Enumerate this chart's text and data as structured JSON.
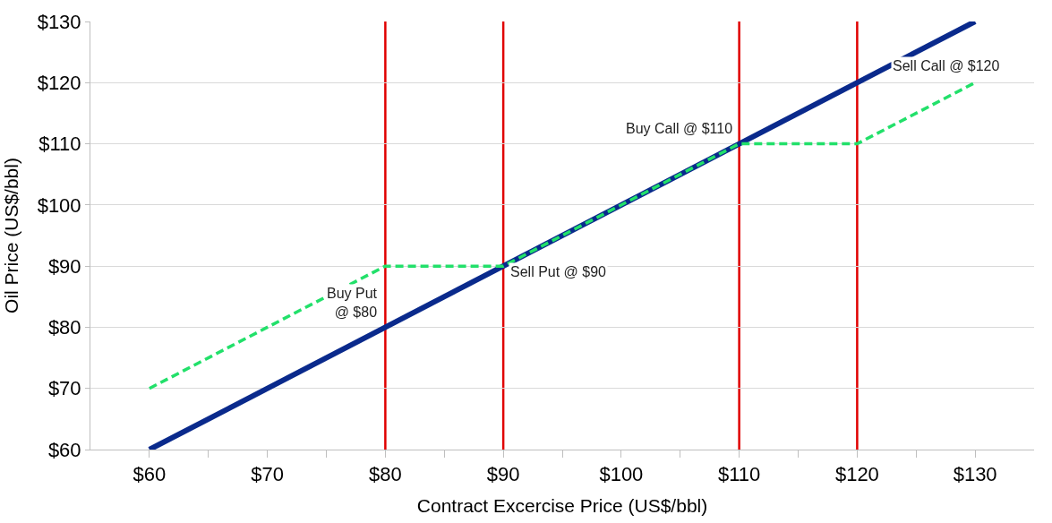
{
  "chart_data": {
    "type": "line",
    "xlabel": "Contract Excercise Price (US$/bbl)",
    "ylabel": "Oil Price (US$/bbl)",
    "xlim": [
      55,
      135
    ],
    "xticks": [
      {
        "value": 60,
        "label": "$60"
      },
      {
        "value": 65,
        "label": null
      },
      {
        "value": 70,
        "label": "$70"
      },
      {
        "value": 75,
        "label": null
      },
      {
        "value": 80,
        "label": "$80"
      },
      {
        "value": 85,
        "label": null
      },
      {
        "value": 90,
        "label": "$90"
      },
      {
        "value": 95,
        "label": null
      },
      {
        "value": 100,
        "label": "$100"
      },
      {
        "value": 105,
        "label": null
      },
      {
        "value": 110,
        "label": "$110"
      },
      {
        "value": 115,
        "label": null
      },
      {
        "value": 120,
        "label": "$120"
      },
      {
        "value": 125,
        "label": null
      },
      {
        "value": 130,
        "label": "$130"
      }
    ],
    "ylim": [
      60,
      130
    ],
    "yticks": [
      {
        "value": 60,
        "label": "$60"
      },
      {
        "value": 70,
        "label": "$70"
      },
      {
        "value": 80,
        "label": "$80"
      },
      {
        "value": 90,
        "label": "$90"
      },
      {
        "value": 100,
        "label": "$100"
      },
      {
        "value": 110,
        "label": "$110"
      },
      {
        "value": 120,
        "label": "$120"
      },
      {
        "value": 130,
        "label": "$130"
      }
    ],
    "grid": "y",
    "series": [
      {
        "color": "#0a2a8c",
        "x": [
          60,
          130
        ],
        "values": [
          60,
          130
        ],
        "line_style": "solid"
      },
      {
        "color": "#22e06a",
        "x": [
          60,
          80,
          90,
          110,
          120,
          130
        ],
        "values": [
          70,
          90,
          90,
          110,
          110,
          120
        ],
        "line_style": "dashed"
      }
    ],
    "ref_lines": [
      {
        "axis": "x",
        "value": 80,
        "color": "#e00000"
      },
      {
        "axis": "x",
        "value": 90,
        "color": "#e00000"
      },
      {
        "axis": "x",
        "value": 110,
        "color": "#e00000"
      },
      {
        "axis": "x",
        "value": 120,
        "color": "#e00000"
      }
    ],
    "annotations": [
      {
        "text": "Buy Put\n@ $80",
        "x": 80,
        "y": 84
      },
      {
        "text": "Sell Put @ $90",
        "x": 90,
        "y": 89
      },
      {
        "text": "Buy Call @ $110",
        "x": 110,
        "y": 112.5
      },
      "Sell Call @ $120"
    ]
  }
}
